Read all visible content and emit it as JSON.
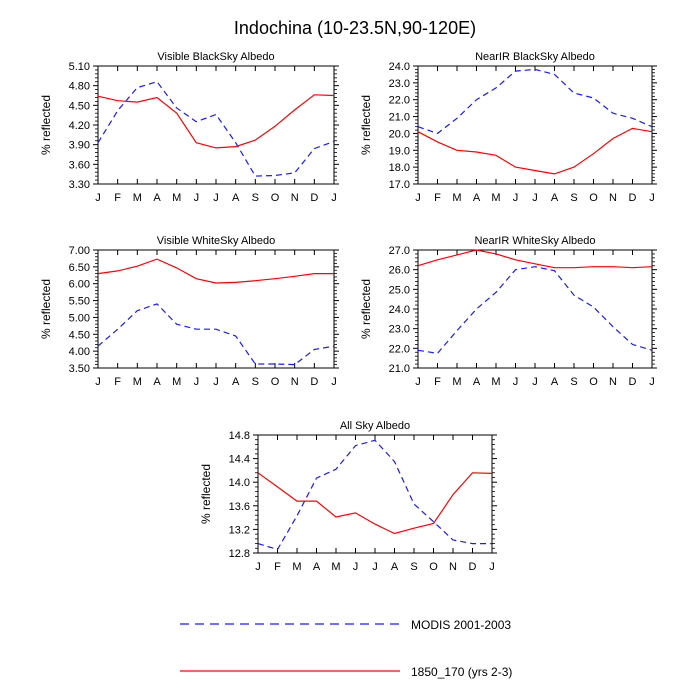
{
  "title": "Indochina (10-23.5N,90-120E)",
  "months": [
    "J",
    "F",
    "M",
    "A",
    "M",
    "J",
    "J",
    "A",
    "S",
    "O",
    "N",
    "D",
    "J"
  ],
  "legend": {
    "modis_label": "MODIS 2001-2003",
    "model_label": "1850_170 (yrs 2-3)"
  },
  "colors": {
    "modis": "#1a1aff",
    "model": "#ff0000"
  },
  "chart_data": [
    {
      "type": "line",
      "title": "Visible BlackSky Albedo",
      "ylabel": "% reflected",
      "ylim": [
        3.3,
        5.1
      ],
      "yticks": [
        "3.30",
        "3.60",
        "3.90",
        "4.20",
        "4.50",
        "4.80",
        "5.10"
      ],
      "ytick_values": [
        3.3,
        3.6,
        3.9,
        4.2,
        4.5,
        4.8,
        5.1
      ],
      "x": [
        "J",
        "F",
        "M",
        "A",
        "M",
        "J",
        "J",
        "A",
        "S",
        "O",
        "N",
        "D",
        "J"
      ],
      "series": [
        {
          "key": "modis",
          "values": [
            3.93,
            4.42,
            4.77,
            4.86,
            4.46,
            4.25,
            4.36,
            3.93,
            3.42,
            3.43,
            3.47,
            3.84,
            3.95
          ]
        },
        {
          "key": "model",
          "values": [
            4.64,
            4.57,
            4.55,
            4.62,
            4.38,
            3.93,
            3.85,
            3.87,
            3.97,
            4.18,
            4.43,
            4.66,
            4.65
          ]
        }
      ]
    },
    {
      "type": "line",
      "title": "NearIR BlackSky Albedo",
      "ylabel": "% reflected",
      "ylim": [
        17.0,
        24.0
      ],
      "yticks": [
        "17.0",
        "18.0",
        "19.0",
        "20.0",
        "21.0",
        "22.0",
        "23.0",
        "24.0"
      ],
      "ytick_values": [
        17,
        18,
        19,
        20,
        21,
        22,
        23,
        24
      ],
      "x": [
        "J",
        "F",
        "M",
        "A",
        "M",
        "J",
        "J",
        "A",
        "S",
        "O",
        "N",
        "D",
        "J"
      ],
      "series": [
        {
          "key": "modis",
          "values": [
            20.4,
            20.0,
            20.9,
            22.0,
            22.7,
            23.7,
            23.8,
            23.5,
            22.4,
            22.1,
            21.2,
            20.9,
            20.4
          ]
        },
        {
          "key": "model",
          "values": [
            20.1,
            19.5,
            19.0,
            18.9,
            18.7,
            18.0,
            17.8,
            17.6,
            18.0,
            18.8,
            19.7,
            20.3,
            20.1
          ]
        }
      ]
    },
    {
      "type": "line",
      "title": "Visible WhiteSky Albedo",
      "ylabel": "% reflected",
      "ylim": [
        3.5,
        7.0
      ],
      "yticks": [
        "3.50",
        "4.00",
        "4.50",
        "5.00",
        "5.50",
        "6.00",
        "6.50",
        "7.00"
      ],
      "ytick_values": [
        3.5,
        4.0,
        4.5,
        5.0,
        5.5,
        6.0,
        6.5,
        7.0
      ],
      "x": [
        "J",
        "F",
        "M",
        "A",
        "M",
        "J",
        "J",
        "A",
        "S",
        "O",
        "N",
        "D",
        "J"
      ],
      "series": [
        {
          "key": "modis",
          "values": [
            4.15,
            4.65,
            5.2,
            5.4,
            4.8,
            4.65,
            4.65,
            4.45,
            3.62,
            3.62,
            3.6,
            4.05,
            4.15
          ]
        },
        {
          "key": "model",
          "values": [
            6.3,
            6.38,
            6.52,
            6.73,
            6.47,
            6.15,
            6.02,
            6.04,
            6.09,
            6.15,
            6.22,
            6.3,
            6.3
          ]
        }
      ]
    },
    {
      "type": "line",
      "title": "NearIR WhiteSky Albedo",
      "ylabel": "% reflected",
      "ylim": [
        21.0,
        27.0
      ],
      "yticks": [
        "21.0",
        "22.0",
        "23.0",
        "24.0",
        "25.0",
        "26.0",
        "27.0"
      ],
      "ytick_values": [
        21,
        22,
        23,
        24,
        25,
        26,
        27
      ],
      "x": [
        "J",
        "F",
        "M",
        "A",
        "M",
        "J",
        "J",
        "A",
        "S",
        "O",
        "N",
        "D",
        "J"
      ],
      "series": [
        {
          "key": "modis",
          "values": [
            21.9,
            21.75,
            22.9,
            24.0,
            24.85,
            26.0,
            26.15,
            25.95,
            24.7,
            24.1,
            23.1,
            22.2,
            21.9
          ]
        },
        {
          "key": "model",
          "values": [
            26.2,
            26.5,
            26.75,
            27.0,
            26.8,
            26.5,
            26.3,
            26.1,
            26.1,
            26.15,
            26.15,
            26.1,
            26.15
          ]
        }
      ]
    },
    {
      "type": "line",
      "title": "All Sky Albedo",
      "ylabel": "% reflected",
      "ylim": [
        12.8,
        14.8
      ],
      "yticks": [
        "12.8",
        "13.2",
        "13.6",
        "14.0",
        "14.4",
        "14.8"
      ],
      "ytick_values": [
        12.8,
        13.2,
        13.6,
        14.0,
        14.4,
        14.8
      ],
      "x": [
        "J",
        "F",
        "M",
        "A",
        "M",
        "J",
        "J",
        "A",
        "S",
        "O",
        "N",
        "D",
        "J"
      ],
      "series": [
        {
          "key": "modis",
          "values": [
            12.96,
            12.86,
            13.43,
            14.07,
            14.22,
            14.62,
            14.71,
            14.35,
            13.63,
            13.33,
            13.02,
            12.96,
            12.96
          ]
        },
        {
          "key": "model",
          "values": [
            14.16,
            13.92,
            13.68,
            13.68,
            13.41,
            13.48,
            13.29,
            13.13,
            13.22,
            13.3,
            13.79,
            14.16,
            14.15
          ]
        }
      ]
    }
  ]
}
